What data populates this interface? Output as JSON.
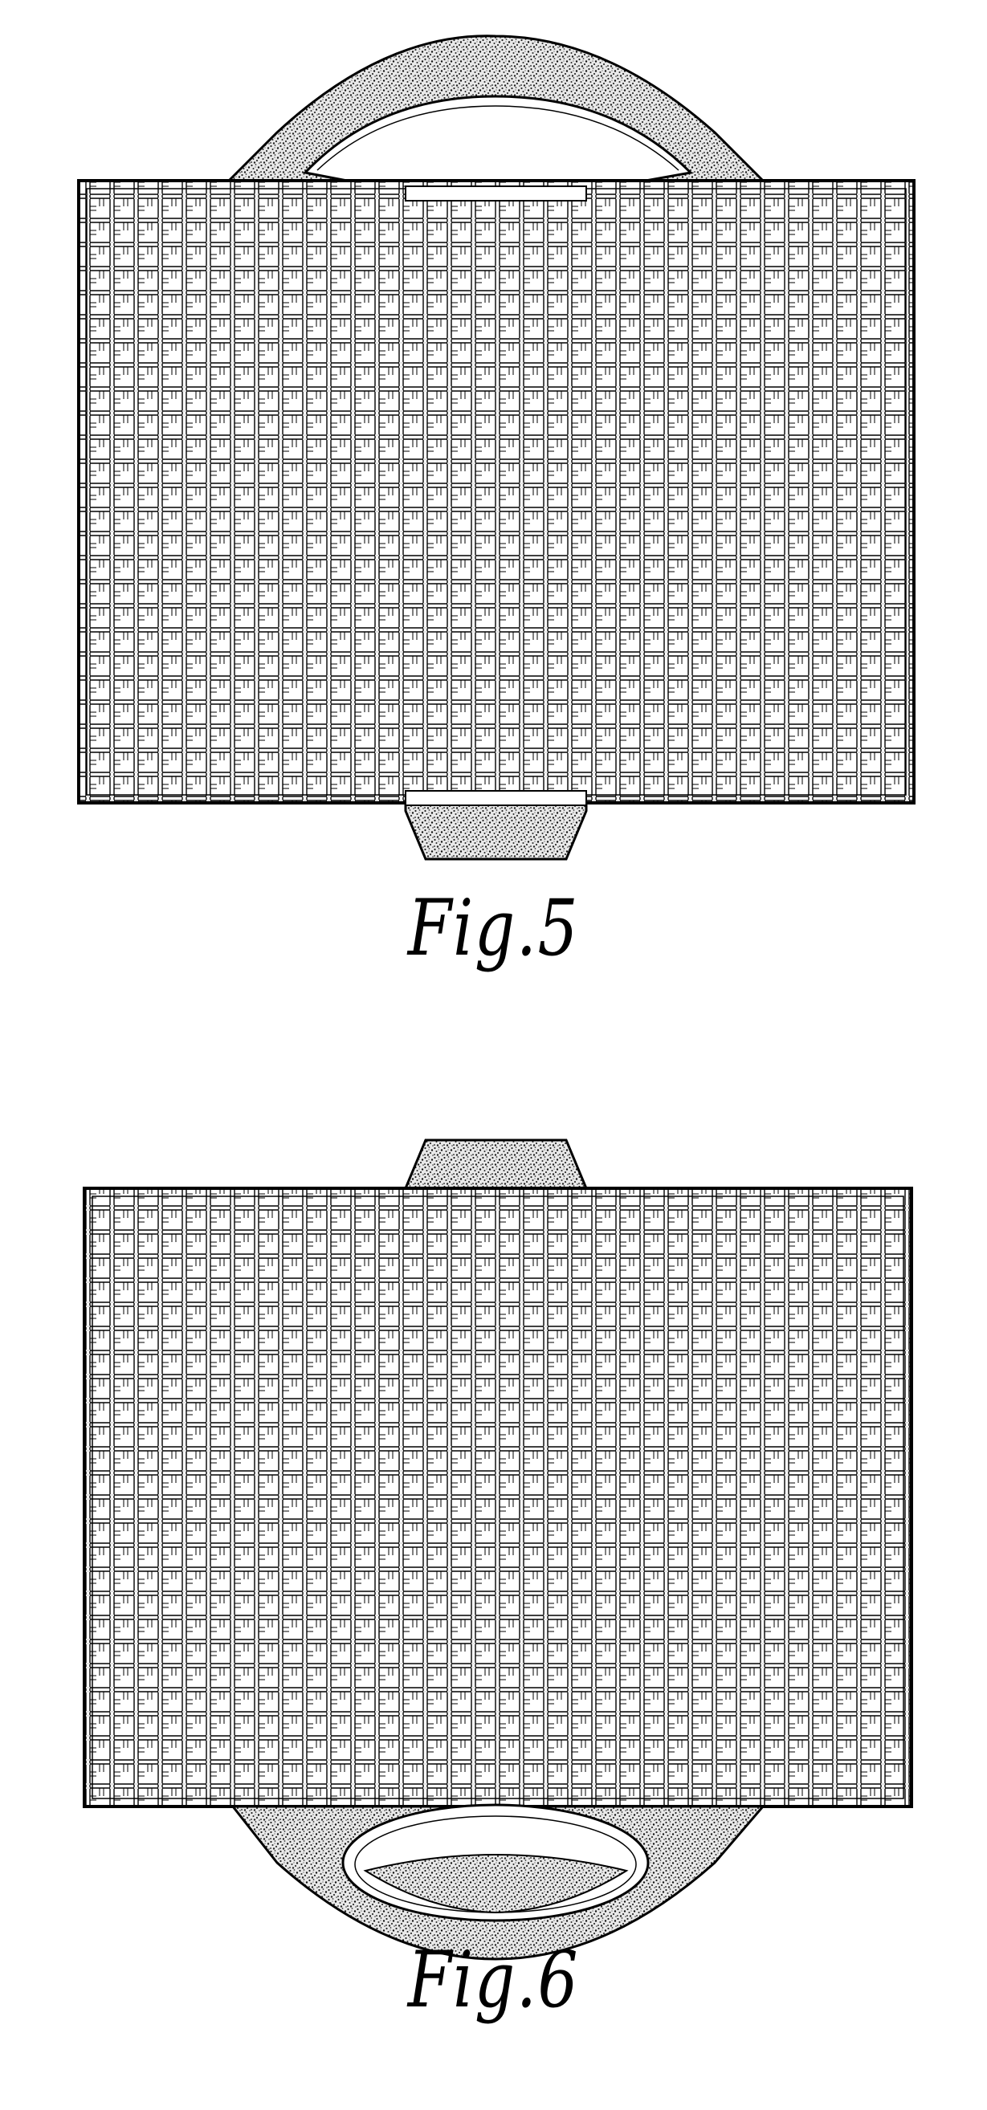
{
  "figures": [
    {
      "caption": "Fig.5",
      "handle_position": "top",
      "tab_position": "bottom"
    },
    {
      "caption": "Fig.6",
      "handle_position": "bottom",
      "tab_position": "top"
    }
  ],
  "colors": {
    "ink": "#000000",
    "paper": "#ffffff",
    "stipple": "#3a3a3a"
  }
}
